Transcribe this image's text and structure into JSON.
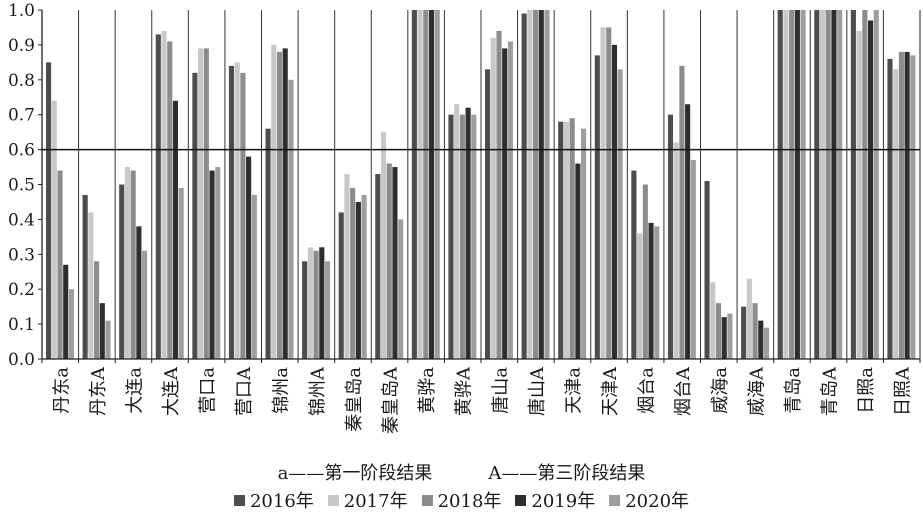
{
  "chart_data": {
    "type": "bar",
    "ylim": [
      0,
      1.0
    ],
    "yticks": [
      "0.0",
      "0.1",
      "0.2",
      "0.3",
      "0.4",
      "0.5",
      "0.6",
      "0.7",
      "0.8",
      "0.9",
      "1.0"
    ],
    "reference_line": 0.6,
    "categories": [
      "丹东a",
      "丹东A",
      "大连a",
      "大连A",
      "营口a",
      "营口A",
      "锦州a",
      "锦州A",
      "秦皇岛a",
      "秦皇岛A",
      "黄骅a",
      "黄骅A",
      "唐山a",
      "唐山A",
      "天津a",
      "天津A",
      "烟台a",
      "烟台A",
      "威海a",
      "威海A",
      "青岛a",
      "青岛A",
      "日照a",
      "日照A"
    ],
    "series": [
      {
        "name": "2016年",
        "color": "#4d4d4d",
        "values": [
          0.85,
          0.47,
          0.5,
          0.93,
          0.82,
          0.84,
          0.66,
          0.28,
          0.42,
          0.53,
          1.0,
          0.7,
          0.83,
          0.99,
          0.68,
          0.87,
          0.54,
          0.7,
          0.51,
          0.15,
          1.0,
          1.0,
          1.0,
          0.86
        ]
      },
      {
        "name": "2017年",
        "color": "#c8c8c8",
        "values": [
          0.74,
          0.42,
          0.55,
          0.94,
          0.89,
          0.85,
          0.9,
          0.32,
          0.53,
          0.65,
          1.0,
          0.73,
          0.92,
          1.0,
          0.68,
          0.95,
          0.36,
          0.62,
          0.22,
          0.23,
          1.0,
          1.0,
          0.94,
          0.83
        ]
      },
      {
        "name": "2018年",
        "color": "#8c8c8c",
        "values": [
          0.54,
          0.28,
          0.54,
          0.91,
          0.89,
          0.82,
          0.88,
          0.31,
          0.49,
          0.56,
          1.0,
          0.7,
          0.94,
          1.0,
          0.69,
          0.95,
          0.5,
          0.84,
          0.16,
          0.16,
          1.0,
          1.0,
          1.0,
          0.88
        ]
      },
      {
        "name": "2019年",
        "color": "#2e2e2e",
        "values": [
          0.27,
          0.16,
          0.38,
          0.74,
          0.54,
          0.58,
          0.89,
          0.32,
          0.45,
          0.55,
          1.0,
          0.72,
          0.89,
          1.0,
          0.56,
          0.9,
          0.39,
          0.73,
          0.12,
          0.11,
          1.0,
          1.0,
          0.97,
          0.88
        ]
      },
      {
        "name": "2020年",
        "color": "#9e9e9e",
        "values": [
          0.2,
          0.11,
          0.31,
          0.49,
          0.55,
          0.47,
          0.8,
          0.28,
          0.47,
          0.4,
          1.0,
          0.7,
          0.91,
          1.0,
          0.66,
          0.83,
          0.38,
          0.57,
          0.13,
          0.09,
          1.0,
          1.0,
          1.0,
          0.87
        ]
      }
    ]
  },
  "notes": {
    "stage_a": "a——第一阶段结果",
    "stage_A": "A——第三阶段结果"
  }
}
